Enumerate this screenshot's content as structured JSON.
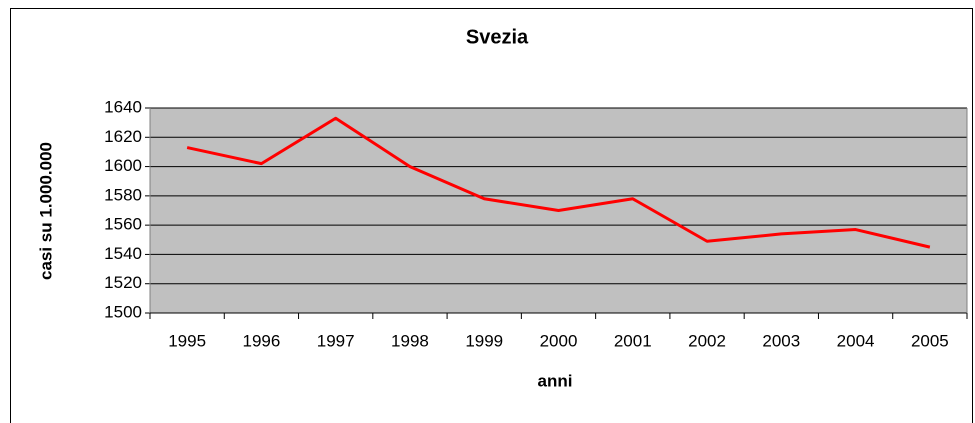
{
  "chart_data": {
    "type": "line",
    "title": "Svezia",
    "x_label": "anni",
    "y_label": "casi su 1.000.000",
    "categories": [
      "1995",
      "1996",
      "1997",
      "1998",
      "1999",
      "2000",
      "2001",
      "2002",
      "2003",
      "2004",
      "2005"
    ],
    "series": [
      {
        "name": "Svezia",
        "color": "#ff0000",
        "values": [
          1613,
          1602,
          1633,
          1600,
          1578,
          1570,
          1578,
          1549,
          1554,
          1557,
          1545
        ]
      }
    ],
    "ylim": [
      1500,
      1640
    ],
    "yticks": [
      1500,
      1520,
      1540,
      1560,
      1580,
      1600,
      1620,
      1640
    ],
    "grid": true,
    "plot_background": "#c0c0c0"
  }
}
